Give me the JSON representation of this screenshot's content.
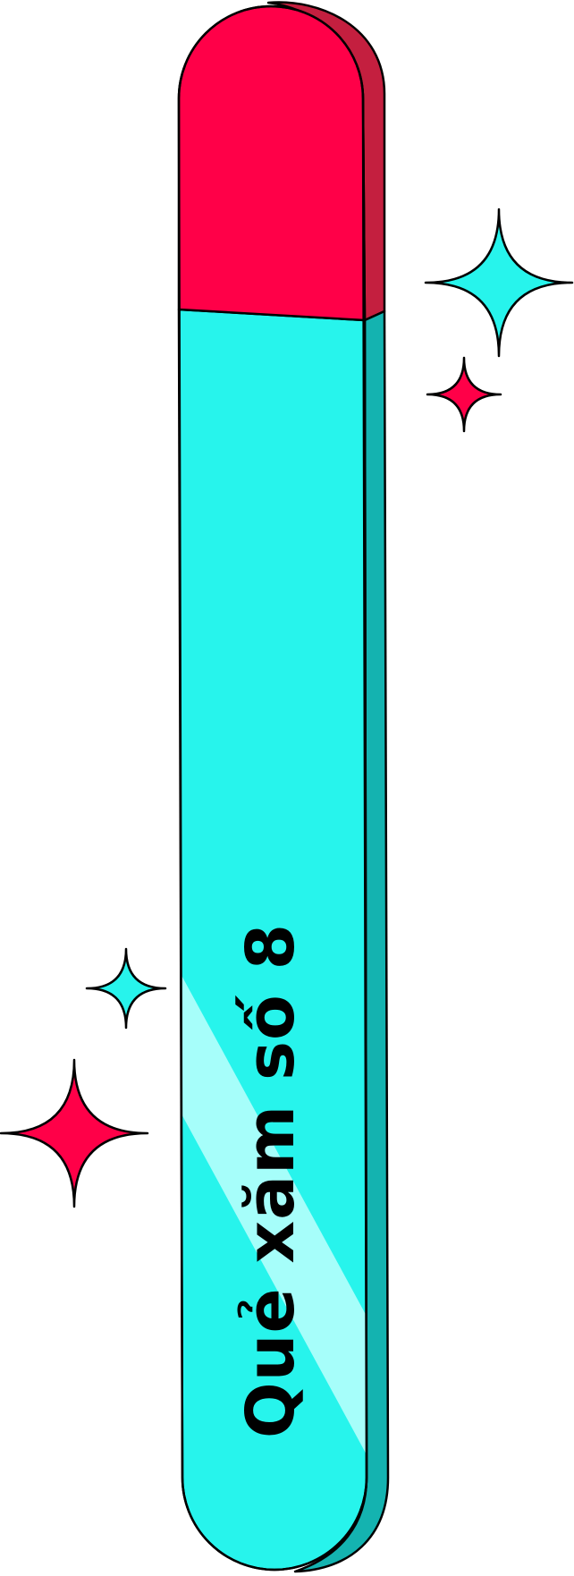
{
  "stick": {
    "label": "Quẻ xăm số 8"
  },
  "colors": {
    "stick_body": "#27F4EC",
    "stick_side": "#14B3B0",
    "stick_top": "#FF0048",
    "stick_top_side": "#C41F3F",
    "shine": "#A6FEFA",
    "outline": "#000000",
    "sparkle_cyan": "#27F4EC",
    "sparkle_red": "#FF0048"
  },
  "sparkles": [
    "sparkle-large-cyan",
    "sparkle-small-red",
    "sparkle-small-cyan",
    "sparkle-large-red"
  ]
}
